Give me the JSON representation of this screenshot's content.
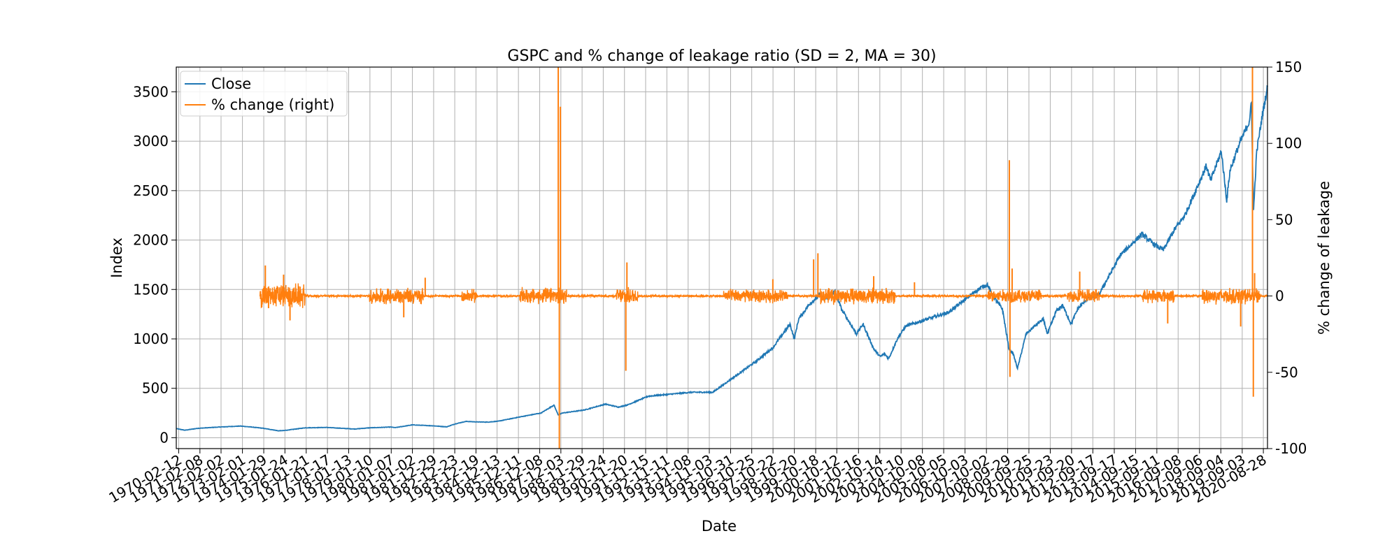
{
  "chart_data": {
    "type": "line",
    "title": "GSPC and % change of leakage ratio (SD = 2, MA = 30)",
    "xlabel": "Date",
    "ylabel": "Index",
    "ylabel_right": "% change of leakage",
    "grid": true,
    "legend_position": "top-left",
    "ylim": [
      -110,
      3750
    ],
    "ylim_right": [
      -100,
      150
    ],
    "yticks": [
      0,
      500,
      1000,
      1500,
      2000,
      2500,
      3000,
      3500
    ],
    "yticks_right": [
      -100,
      -50,
      0,
      50,
      100,
      150
    ],
    "x_tick_labels": [
      "1970-02-12",
      "1971-02-08",
      "1972-02-02",
      "1973-02-01",
      "1974-01-29",
      "1975-01-24",
      "1976-01-21",
      "1977-01-17",
      "1978-01-13",
      "1979-01-10",
      "1980-01-07",
      "1981-01-02",
      "1981-12-29",
      "1982-12-23",
      "1983-12-19",
      "1984-12-13",
      "1985-12-11",
      "1986-12-08",
      "1987-12-03",
      "1988-11-29",
      "1989-11-24",
      "1990-11-20",
      "1991-11-15",
      "1992-11-11",
      "1993-11-08",
      "1994-11-03",
      "1995-10-31",
      "1996-10-25",
      "1997-10-22",
      "1998-10-20",
      "1999-10-18",
      "2000-10-12",
      "2001-10-16",
      "2002-10-14",
      "2003-10-10",
      "2004-10-08",
      "2005-10-05",
      "2006-10-03",
      "2007-10-02",
      "2008-09-29",
      "2009-09-25",
      "2010-09-23",
      "2011-09-20",
      "2012-09-17",
      "2013-09-17",
      "2014-09-15",
      "2015-09-11",
      "2016-09-08",
      "2017-09-06",
      "2018-09-04",
      "2019-09-03",
      "2020-08-28"
    ],
    "x_range_years": [
      1970.0,
      2020.85
    ],
    "series": [
      {
        "name": "Close",
        "axis": "left",
        "color": "#1f77b4",
        "x": [
          1970.0,
          1970.4,
          1971.0,
          1972.0,
          1973.0,
          1973.5,
          1974.0,
          1974.5,
          1974.75,
          1975.0,
          1976.0,
          1977.0,
          1978.0,
          1978.3,
          1979.0,
          1980.0,
          1980.2,
          1981.0,
          1982.0,
          1982.6,
          1983.0,
          1983.5,
          1984.0,
          1984.5,
          1985.0,
          1986.0,
          1987.0,
          1987.6,
          1987.8,
          1988.0,
          1989.0,
          1990.0,
          1990.6,
          1990.8,
          1991.0,
          1992.0,
          1993.0,
          1994.0,
          1995.0,
          1996.0,
          1997.0,
          1997.8,
          1998.0,
          1998.6,
          1998.8,
          1999.0,
          1999.5,
          2000.0,
          2000.2,
          2000.7,
          2001.0,
          2001.7,
          2002.0,
          2002.5,
          2002.8,
          2003.0,
          2003.2,
          2003.6,
          2004.0,
          2005.0,
          2006.0,
          2007.0,
          2007.5,
          2007.8,
          2008.0,
          2008.5,
          2008.8,
          2009.0,
          2009.2,
          2009.6,
          2010.0,
          2010.4,
          2010.6,
          2011.0,
          2011.3,
          2011.7,
          2012.0,
          2012.5,
          2013.0,
          2014.0,
          2015.0,
          2015.6,
          2016.0,
          2016.5,
          2017.0,
          2018.0,
          2018.2,
          2018.7,
          2018.95,
          2019.1,
          2019.5,
          2020.0,
          2020.1,
          2020.2,
          2020.35,
          2020.6,
          2020.85
        ],
        "y": [
          92,
          76,
          95,
          108,
          118,
          108,
          97,
          80,
          70,
          72,
          100,
          104,
          92,
          88,
          100,
          108,
          102,
          130,
          120,
          110,
          140,
          165,
          160,
          158,
          167,
          210,
          250,
          330,
          230,
          250,
          280,
          340,
          310,
          320,
          330,
          420,
          440,
          460,
          460,
          615,
          770,
          910,
          970,
          1150,
          1000,
          1200,
          1350,
          1450,
          1400,
          1480,
          1300,
          1050,
          1150,
          900,
          820,
          850,
          800,
          1000,
          1130,
          1200,
          1270,
          1440,
          1520,
          1550,
          1450,
          1300,
          900,
          850,
          700,
          1050,
          1130,
          1200,
          1050,
          1280,
          1340,
          1150,
          1300,
          1420,
          1450,
          1850,
          2060,
          1950,
          1900,
          2100,
          2250,
          2750,
          2600,
          2900,
          2400,
          2700,
          2950,
          3200,
          3380,
          2300,
          2900,
          3250,
          3550
        ]
      },
      {
        "name": "% change (right)",
        "axis": "right",
        "color": "#ff7f0e",
        "x_start": 1973.9,
        "x_end": 2020.85,
        "baseline": 0,
        "bursts": [
          {
            "x": [
              1973.9,
              1976.0
            ],
            "amp": 9
          },
          {
            "x": [
              1979.0,
              1981.5
            ],
            "amp": 6
          },
          {
            "x": [
              1983.3,
              1984.0
            ],
            "amp": 5
          },
          {
            "x": [
              1986.0,
              1988.2
            ],
            "amp": 6
          },
          {
            "x": [
              1990.5,
              1991.5
            ],
            "amp": 6
          },
          {
            "x": [
              1995.5,
              1998.5
            ],
            "amp": 5
          },
          {
            "x": [
              2000.0,
              2003.5
            ],
            "amp": 6
          },
          {
            "x": [
              2007.8,
              2010.3
            ],
            "amp": 5
          },
          {
            "x": [
              2011.5,
              2013.0
            ],
            "amp": 5
          },
          {
            "x": [
              2015.0,
              2016.5
            ],
            "amp": 5
          },
          {
            "x": [
              2017.8,
              2020.5
            ],
            "amp": 6
          }
        ],
        "spikes": [
          {
            "x": 1974.15,
            "y": 20
          },
          {
            "x": 1974.3,
            "y": -8
          },
          {
            "x": 1975.0,
            "y": 14
          },
          {
            "x": 1975.3,
            "y": -16
          },
          {
            "x": 1980.6,
            "y": -14
          },
          {
            "x": 1981.6,
            "y": 12
          },
          {
            "x": 1987.8,
            "y": 150
          },
          {
            "x": 1987.85,
            "y": -100
          },
          {
            "x": 1987.9,
            "y": 124
          },
          {
            "x": 1990.95,
            "y": -49
          },
          {
            "x": 1991.0,
            "y": 22
          },
          {
            "x": 1997.8,
            "y": 11
          },
          {
            "x": 1999.7,
            "y": 24
          },
          {
            "x": 1999.9,
            "y": 28
          },
          {
            "x": 2002.5,
            "y": 13
          },
          {
            "x": 2004.4,
            "y": 9
          },
          {
            "x": 2008.82,
            "y": 89
          },
          {
            "x": 2008.85,
            "y": -53
          },
          {
            "x": 2008.95,
            "y": 18
          },
          {
            "x": 2012.1,
            "y": 16
          },
          {
            "x": 2016.2,
            "y": -18
          },
          {
            "x": 2019.6,
            "y": -20
          },
          {
            "x": 2020.15,
            "y": 150
          },
          {
            "x": 2020.19,
            "y": -66
          },
          {
            "x": 2020.25,
            "y": 15
          }
        ]
      }
    ]
  }
}
